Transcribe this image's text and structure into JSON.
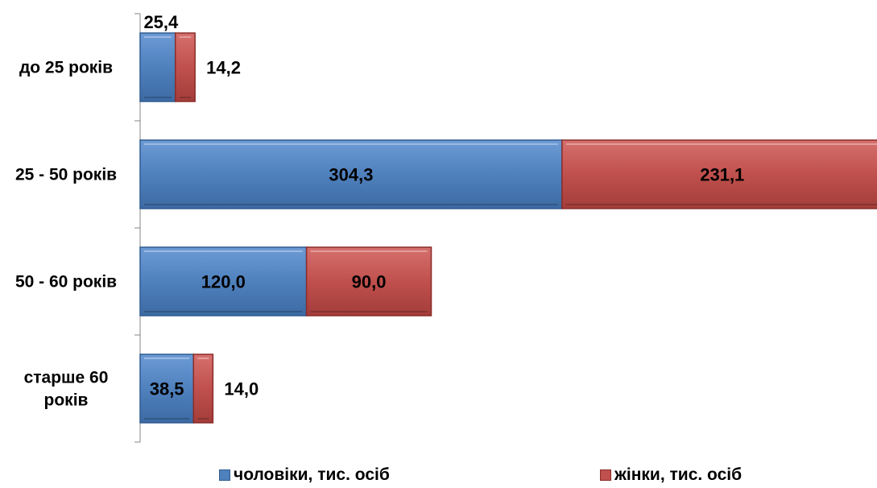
{
  "chart_data": {
    "type": "bar",
    "orientation": "horizontal",
    "stacked": true,
    "categories": [
      "до 25 років",
      "25 - 50 років",
      "50 - 60 років",
      "старше 60 років"
    ],
    "series": [
      {
        "name": "чоловіки, тис. осіб",
        "values": [
          25.4,
          304.3,
          120.0,
          38.5
        ],
        "labels": [
          "25,4",
          "304,3",
          "120,0",
          "38,5"
        ],
        "color": "#4F81BD"
      },
      {
        "name": "жінки, тис. осіб",
        "values": [
          14.2,
          231.1,
          90.0,
          14.0
        ],
        "labels": [
          "14,2",
          "231,1",
          "90,0",
          "14,0"
        ],
        "color": "#C0504D"
      }
    ],
    "title": "",
    "xlabel": "",
    "ylabel": "",
    "legend_position": "bottom",
    "grid": false
  }
}
